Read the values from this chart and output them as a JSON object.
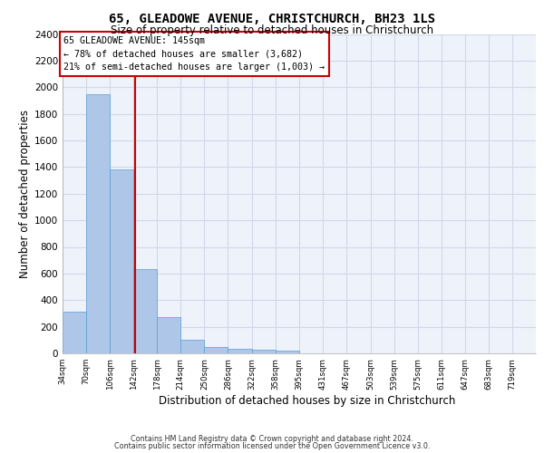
{
  "title": "65, GLEADOWE AVENUE, CHRISTCHURCH, BH23 1LS",
  "subtitle": "Size of property relative to detached houses in Christchurch",
  "xlabel": "Distribution of detached houses by size in Christchurch",
  "ylabel": "Number of detached properties",
  "bar_edges": [
    34,
    70,
    106,
    142,
    178,
    214,
    250,
    286,
    322,
    358,
    395,
    431,
    467,
    503,
    539,
    575,
    611,
    647,
    683,
    719,
    755
  ],
  "bar_heights": [
    310,
    1950,
    1380,
    630,
    270,
    100,
    47,
    32,
    27,
    20,
    0,
    0,
    0,
    0,
    0,
    0,
    0,
    0,
    0,
    0
  ],
  "bar_color": "#aec6e8",
  "bar_edgecolor": "#5a9fd4",
  "grid_color": "#d0d8e8",
  "background_color": "#eef2fa",
  "vline_x": 145,
  "vline_color": "#cc0000",
  "annotation_text": "65 GLEADOWE AVENUE: 145sqm\n← 78% of detached houses are smaller (3,682)\n21% of semi-detached houses are larger (1,003) →",
  "annotation_box_edgecolor": "#cc0000",
  "annotation_box_bg": "#ffffff",
  "ylim_max": 2400,
  "yticks": [
    0,
    200,
    400,
    600,
    800,
    1000,
    1200,
    1400,
    1600,
    1800,
    2000,
    2200,
    2400
  ],
  "footer_line1": "Contains HM Land Registry data © Crown copyright and database right 2024.",
  "footer_line2": "Contains public sector information licensed under the Open Government Licence v3.0."
}
